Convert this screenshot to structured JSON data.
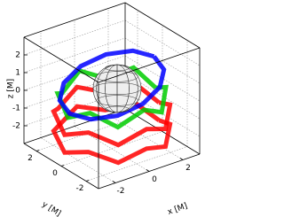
{
  "chart_data": {
    "type": "line3d",
    "xlabel": "x [M]",
    "ylabel": "y [M]",
    "zlabel": "z [M]",
    "xlim": [
      -3,
      3
    ],
    "ylim": [
      -3,
      3
    ],
    "zlim": [
      -3,
      3
    ],
    "xticks": [
      -2,
      0,
      2
    ],
    "yticks": [
      -2,
      0,
      2
    ],
    "zticks": [
      -2,
      -1,
      0,
      1,
      2
    ],
    "grid": true,
    "series": [
      {
        "color": "#ff0000",
        "x": [
          2.8,
          2.42,
          1.4,
          0,
          -1.4,
          -2.42,
          -2.8,
          -2.42,
          -1.4,
          0,
          1.4,
          2.42,
          2.8
        ],
        "y": [
          0,
          1.4,
          2.42,
          2.8,
          2.42,
          1.4,
          0,
          -1.4,
          -2.42,
          -2.8,
          -2.42,
          -1.4,
          0
        ],
        "z": [
          -2.3,
          -1.8,
          -2.3,
          -1.8,
          -2.3,
          -1.8,
          -2.3,
          -1.8,
          -2.3,
          -1.8,
          -2.3,
          -1.8,
          -2.3
        ]
      },
      {
        "color": "#ff0000",
        "x": [
          2.8,
          2.42,
          1.4,
          0,
          -1.4,
          -2.42,
          -2.8,
          -2.42,
          -1.4,
          0,
          1.4,
          2.42,
          2.8
        ],
        "y": [
          0,
          1.4,
          2.42,
          2.8,
          2.42,
          1.4,
          0,
          -1.4,
          -2.42,
          -2.8,
          -2.42,
          -1.4,
          0
        ],
        "z": [
          -1.3,
          -0.7,
          -1.3,
          -0.7,
          -1.3,
          -0.7,
          -1.3,
          -0.7,
          -1.3,
          -0.7,
          -1.3,
          -0.7,
          -1.3
        ]
      },
      {
        "color": "#00cc00",
        "x": [
          2.6,
          2.25,
          1.3,
          0,
          -1.3,
          -2.25,
          -2.6,
          -2.25,
          -1.3,
          0,
          1.3,
          2.25,
          2.6
        ],
        "y": [
          0,
          1.3,
          2.25,
          2.6,
          2.25,
          1.3,
          0,
          -1.3,
          -2.25,
          -2.6,
          -2.25,
          -1.3,
          0
        ],
        "z": [
          -0.4,
          0.3,
          -0.4,
          0.3,
          -0.4,
          0.3,
          -0.4,
          0.3,
          -0.4,
          0.3,
          -0.4,
          0.3,
          -0.4
        ]
      },
      {
        "color": "#0000ff",
        "x": [
          2.5,
          2.17,
          1.25,
          0,
          -1.25,
          -2.17,
          -2.5,
          -2.17,
          -1.25,
          0,
          1.25,
          2.17,
          2.5
        ],
        "y": [
          0,
          1.25,
          2.17,
          2.5,
          2.17,
          1.25,
          0,
          -1.25,
          -2.17,
          -2.5,
          -2.17,
          -1.25,
          0
        ],
        "z": [
          1.4,
          1.3,
          1.0,
          0.6,
          0.2,
          -0.1,
          -0.2,
          -0.1,
          0.2,
          0.6,
          1.0,
          1.3,
          1.4
        ]
      }
    ]
  }
}
